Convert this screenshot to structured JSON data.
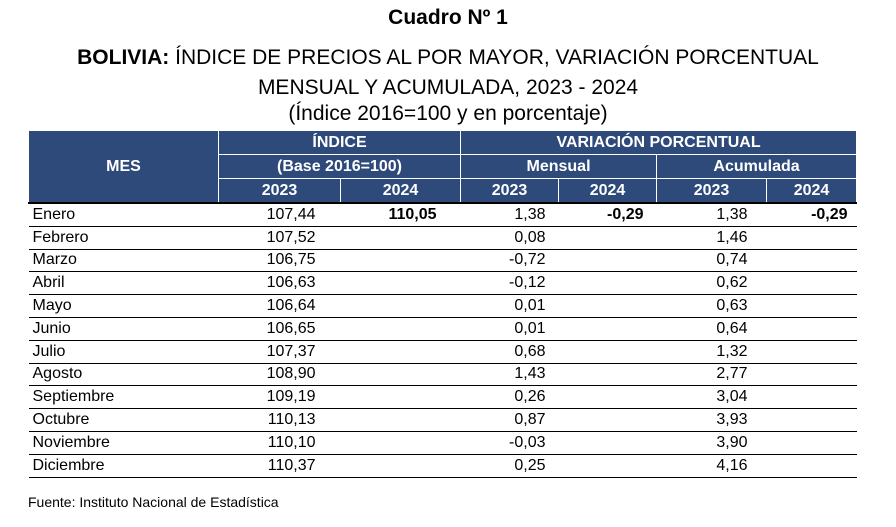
{
  "title": "Cuadro Nº 1",
  "subtitle_bold": "BOLIVIA:",
  "subtitle_rest": " ÍNDICE DE PRECIOS AL POR MAYOR, VARIACIÓN PORCENTUAL",
  "subtitle_line2": "MENSUAL Y ACUMULADA, 2023 - 2024",
  "subtitle_line3": "(Índice 2016=100 y en porcentaje)",
  "header": {
    "mes": "MES",
    "indice": "ÍNDICE",
    "base": "(Base 2016=100)",
    "variacion": "VARIACIÓN PORCENTUAL",
    "mensual": "Mensual",
    "acumulada": "Acumulada",
    "years": [
      "2023",
      "2024",
      "2023",
      "2024",
      "2023",
      "2024"
    ]
  },
  "rows": [
    {
      "mes": "Enero",
      "i2023": "107,44",
      "i2024": "110,05",
      "m2023": "1,38",
      "m2024": "-0,29",
      "a2023": "1,38",
      "a2024": "-0,29"
    },
    {
      "mes": "Febrero",
      "i2023": "107,52",
      "i2024": "",
      "m2023": "0,08",
      "m2024": "",
      "a2023": "1,46",
      "a2024": ""
    },
    {
      "mes": "Marzo",
      "i2023": "106,75",
      "i2024": "",
      "m2023": "-0,72",
      "m2024": "",
      "a2023": "0,74",
      "a2024": ""
    },
    {
      "mes": "Abril",
      "i2023": "106,63",
      "i2024": "",
      "m2023": "-0,12",
      "m2024": "",
      "a2023": "0,62",
      "a2024": ""
    },
    {
      "mes": "Mayo",
      "i2023": "106,64",
      "i2024": "",
      "m2023": "0,01",
      "m2024": "",
      "a2023": "0,63",
      "a2024": ""
    },
    {
      "mes": "Junio",
      "i2023": "106,65",
      "i2024": "",
      "m2023": "0,01",
      "m2024": "",
      "a2023": "0,64",
      "a2024": ""
    },
    {
      "mes": "Julio",
      "i2023": "107,37",
      "i2024": "",
      "m2023": "0,68",
      "m2024": "",
      "a2023": "1,32",
      "a2024": ""
    },
    {
      "mes": "Agosto",
      "i2023": "108,90",
      "i2024": "",
      "m2023": "1,43",
      "m2024": "",
      "a2023": "2,77",
      "a2024": ""
    },
    {
      "mes": "Septiembre",
      "i2023": "109,19",
      "i2024": "",
      "m2023": "0,26",
      "m2024": "",
      "a2023": "3,04",
      "a2024": ""
    },
    {
      "mes": "Octubre",
      "i2023": "110,13",
      "i2024": "",
      "m2023": "0,87",
      "m2024": "",
      "a2023": "3,93",
      "a2024": ""
    },
    {
      "mes": "Noviembre",
      "i2023": "110,10",
      "i2024": "",
      "m2023": "-0,03",
      "m2024": "",
      "a2023": "3,90",
      "a2024": ""
    },
    {
      "mes": "Diciembre",
      "i2023": "110,37",
      "i2024": "",
      "m2023": "0,25",
      "m2024": "",
      "a2023": "4,16",
      "a2024": ""
    }
  ],
  "source": "Fuente: Instituto Nacional de Estadística",
  "colors": {
    "header_bg": "#2e4a7a",
    "header_text": "#ffffff"
  }
}
